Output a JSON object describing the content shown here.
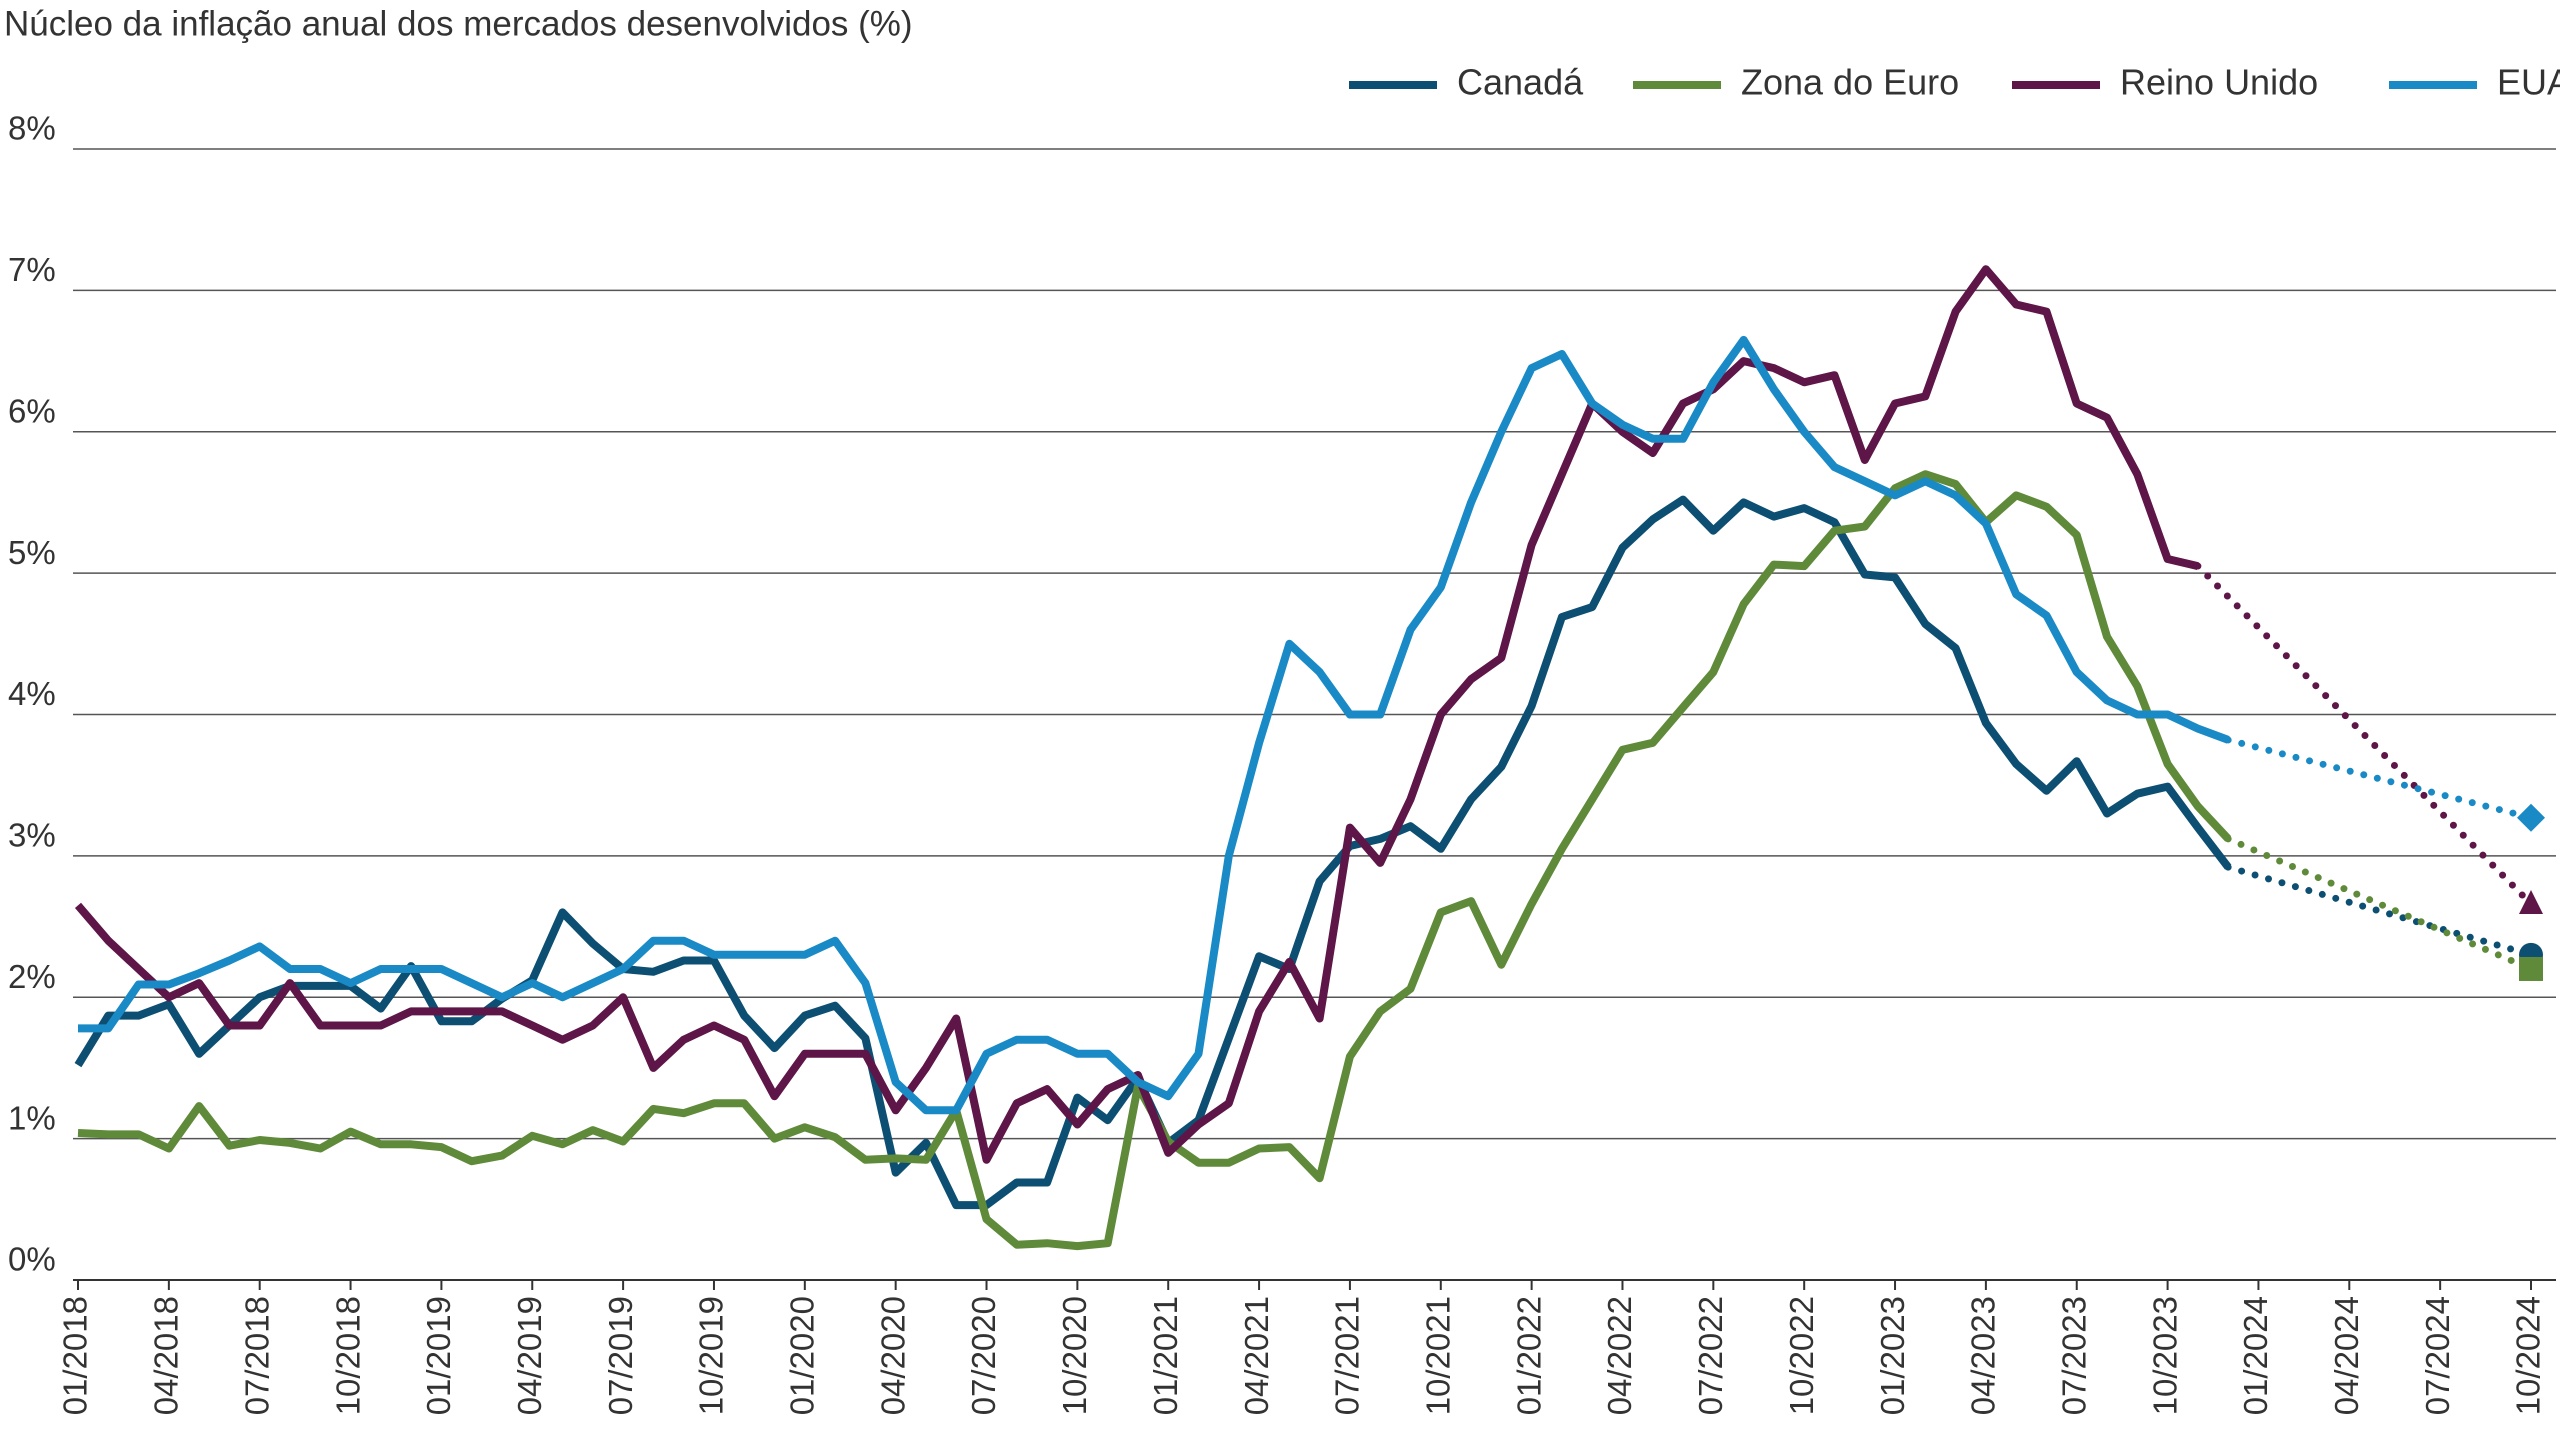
{
  "chart_data": {
    "type": "line",
    "title": "Núcleo da inflação anual dos mercados desenvolvidos (%)",
    "categories": [
      "01/2018",
      null,
      null,
      "04/2018",
      null,
      null,
      "07/2018",
      null,
      null,
      "10/2018",
      null,
      null,
      "01/2019",
      null,
      null,
      "04/2019",
      null,
      null,
      "07/2019",
      null,
      null,
      "10/2019",
      null,
      null,
      "01/2020",
      null,
      null,
      "04/2020",
      null,
      null,
      "07/2020",
      null,
      null,
      "10/2020",
      null,
      null,
      "01/2021",
      null,
      null,
      "04/2021",
      null,
      null,
      "07/2021",
      null,
      null,
      "10/2021",
      null,
      null,
      "01/2022",
      null,
      null,
      "04/2022",
      null,
      null,
      "07/2022",
      null,
      null,
      "10/2022",
      null,
      null,
      "01/2023",
      null,
      null,
      "04/2023",
      null,
      null,
      "07/2023",
      null,
      null,
      "10/2023",
      null,
      null,
      "01/2024",
      null,
      null,
      "04/2024",
      null,
      null,
      "07/2024",
      null,
      null,
      "10/2024"
    ],
    "ylim": [
      0,
      8
    ],
    "yticks": [
      {
        "value": 0,
        "label": "0%"
      },
      {
        "value": 1,
        "label": "1%"
      },
      {
        "value": 2,
        "label": "2%"
      },
      {
        "value": 3,
        "label": "3%"
      },
      {
        "value": 4,
        "label": "4%"
      },
      {
        "value": 5,
        "label": "5%"
      },
      {
        "value": 6,
        "label": "6%"
      },
      {
        "value": 7,
        "label": "7%"
      },
      {
        "value": 8,
        "label": "8%"
      }
    ],
    "grid": true,
    "legend": "top-right",
    "series": [
      {
        "name": "Canadá",
        "color": "#0d4f72",
        "marker": "circle",
        "values": [
          1.52,
          1.87,
          1.87,
          1.95,
          1.6,
          1.8,
          2.0,
          2.08,
          2.08,
          2.08,
          1.92,
          2.22,
          1.83,
          1.83,
          1.99,
          2.12,
          2.6,
          2.38,
          2.2,
          2.18,
          2.26,
          2.26,
          1.87,
          1.64,
          1.87,
          1.94,
          1.71,
          0.76,
          0.97,
          0.53,
          0.53,
          0.69,
          0.69,
          1.29,
          1.13,
          1.43,
          0.97,
          1.13,
          1.71,
          2.29,
          2.2,
          2.82,
          3.07,
          3.12,
          3.21,
          3.05,
          3.4,
          3.63,
          4.06,
          4.69,
          4.76,
          5.18,
          5.38,
          5.52,
          5.3,
          5.5,
          5.4,
          5.46,
          5.36,
          4.99,
          4.97,
          4.64,
          4.47,
          3.94,
          3.65,
          3.46,
          3.67,
          3.3,
          3.44,
          3.49,
          3.2,
          2.92,
          null,
          null,
          null,
          null,
          null,
          null,
          null,
          null,
          null,
          2.3
        ]
      },
      {
        "name": "Zona do Euro",
        "color": "#5f8a3a",
        "marker": "square",
        "values": [
          1.04,
          1.03,
          1.03,
          0.93,
          1.23,
          0.95,
          0.99,
          0.97,
          0.93,
          1.05,
          0.96,
          0.96,
          0.94,
          0.84,
          0.88,
          1.02,
          0.96,
          1.06,
          0.98,
          1.21,
          1.18,
          1.25,
          1.25,
          1.0,
          1.08,
          1.01,
          0.85,
          0.86,
          0.85,
          1.2,
          0.43,
          0.25,
          0.26,
          0.24,
          0.26,
          1.37,
          0.98,
          0.83,
          0.83,
          0.93,
          0.94,
          0.72,
          1.58,
          1.9,
          2.06,
          2.6,
          2.68,
          2.23,
          2.66,
          3.05,
          3.4,
          3.75,
          3.8,
          4.05,
          4.3,
          4.78,
          5.06,
          5.05,
          5.3,
          5.33,
          5.6,
          5.7,
          5.63,
          5.36,
          5.55,
          5.47,
          5.27,
          4.55,
          4.2,
          3.65,
          3.35,
          3.12,
          null,
          null,
          null,
          null,
          null,
          null,
          null,
          null,
          null,
          2.2
        ]
      },
      {
        "name": "Reino Unido",
        "color": "#5e1547",
        "marker": "triangle",
        "values": [
          2.65,
          2.4,
          2.2,
          2.0,
          2.1,
          1.8,
          1.8,
          2.1,
          1.8,
          1.8,
          1.8,
          1.9,
          1.9,
          1.9,
          1.9,
          1.8,
          1.7,
          1.8,
          2.0,
          1.5,
          1.7,
          1.8,
          1.7,
          1.3,
          1.6,
          1.6,
          1.6,
          1.2,
          1.5,
          1.85,
          0.85,
          1.25,
          1.35,
          1.1,
          1.35,
          1.45,
          0.9,
          1.1,
          1.25,
          1.9,
          2.25,
          1.85,
          3.2,
          2.95,
          3.4,
          4.0,
          4.25,
          4.4,
          5.2,
          5.7,
          6.2,
          6.0,
          5.85,
          6.2,
          6.3,
          6.5,
          6.45,
          6.35,
          6.4,
          5.8,
          6.2,
          6.25,
          6.85,
          7.15,
          6.9,
          6.85,
          6.2,
          6.1,
          5.7,
          5.1,
          5.05,
          null,
          null,
          null,
          null,
          null,
          null,
          null,
          null,
          null,
          null,
          2.66
        ]
      },
      {
        "name": "EUA",
        "color": "#1a8ac6",
        "marker": "diamond",
        "values": [
          1.78,
          1.78,
          2.09,
          2.09,
          2.17,
          2.26,
          2.36,
          2.2,
          2.2,
          2.1,
          2.2,
          2.2,
          2.2,
          2.1,
          2.0,
          2.1,
          2.0,
          2.1,
          2.2,
          2.4,
          2.4,
          2.3,
          2.3,
          2.3,
          2.3,
          2.4,
          2.1,
          1.4,
          1.2,
          1.2,
          1.6,
          1.7,
          1.7,
          1.6,
          1.6,
          1.4,
          1.3,
          1.6,
          3.0,
          3.8,
          4.5,
          4.3,
          4.0,
          4.0,
          4.6,
          4.9,
          5.5,
          6.0,
          6.45,
          6.55,
          6.2,
          6.05,
          5.95,
          5.95,
          6.35,
          6.65,
          6.3,
          6.0,
          5.75,
          5.65,
          5.55,
          5.65,
          5.55,
          5.35,
          4.85,
          4.7,
          4.3,
          4.1,
          4.0,
          4.0,
          3.9,
          3.82,
          null,
          null,
          null,
          null,
          null,
          null,
          null,
          null,
          null,
          3.27
        ]
      }
    ]
  }
}
